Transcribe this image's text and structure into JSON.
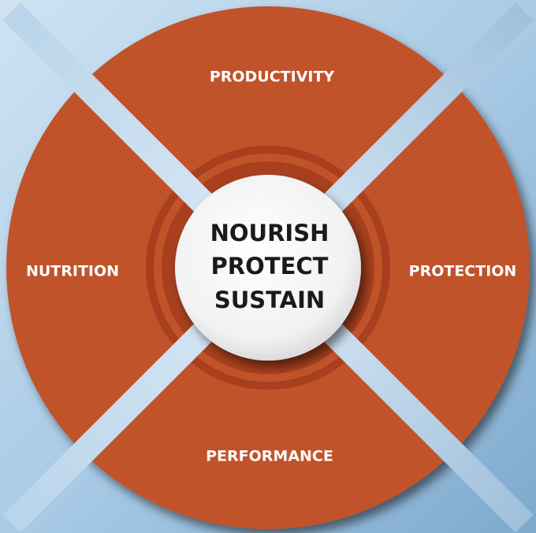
{
  "center": {
    "lines": [
      "NOURISH",
      "PROTECT",
      "SUSTAIN"
    ]
  },
  "segments": [
    {
      "label": "PRODUCTIVITY"
    },
    {
      "label": "PROTECTION"
    },
    {
      "label": "PERFORMANCE"
    },
    {
      "label": "NUTRITION"
    }
  ]
}
